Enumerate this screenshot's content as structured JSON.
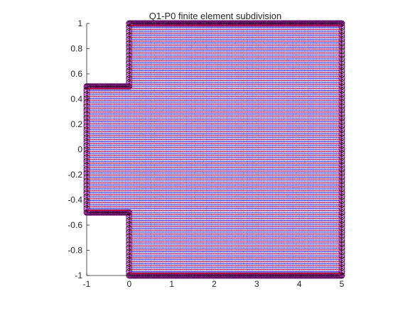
{
  "chart_data": {
    "type": "scatter",
    "title": "Q1-P0 finite element subdivision",
    "xlabel": "",
    "ylabel": "",
    "xlim": [
      -1,
      5
    ],
    "ylim": [
      -1,
      1
    ],
    "xticks": [
      "-1",
      "0",
      "1",
      "2",
      "3",
      "4",
      "5"
    ],
    "yticks": [
      "-1",
      "-0.8",
      "-0.6",
      "-0.4",
      "-0.2",
      "0",
      "0.2",
      "0.4",
      "0.6",
      "0.8",
      "1"
    ],
    "grid": false,
    "domain": "step",
    "domain_outline": [
      [
        -1,
        -0.5
      ],
      [
        0,
        -0.5
      ],
      [
        0,
        -1
      ],
      [
        5,
        -1
      ],
      [
        5,
        1
      ],
      [
        0,
        1
      ],
      [
        0,
        0.5
      ],
      [
        -1,
        0.5
      ],
      [
        -1,
        -0.5
      ]
    ],
    "mesh_spacing": 0.03125,
    "series": [
      {
        "marker": "circle",
        "color": "#000000",
        "description": "Q1 velocity nodes (element vertices)"
      },
      {
        "marker": "circle",
        "color": "#d11ad1",
        "description": "element edge midpoints"
      },
      {
        "marker": "dot",
        "color": "#ff0000",
        "description": "P0 pressure nodes (element centroids)"
      },
      {
        "marker": "line",
        "color": "#0000ff",
        "description": "element edges"
      }
    ]
  }
}
